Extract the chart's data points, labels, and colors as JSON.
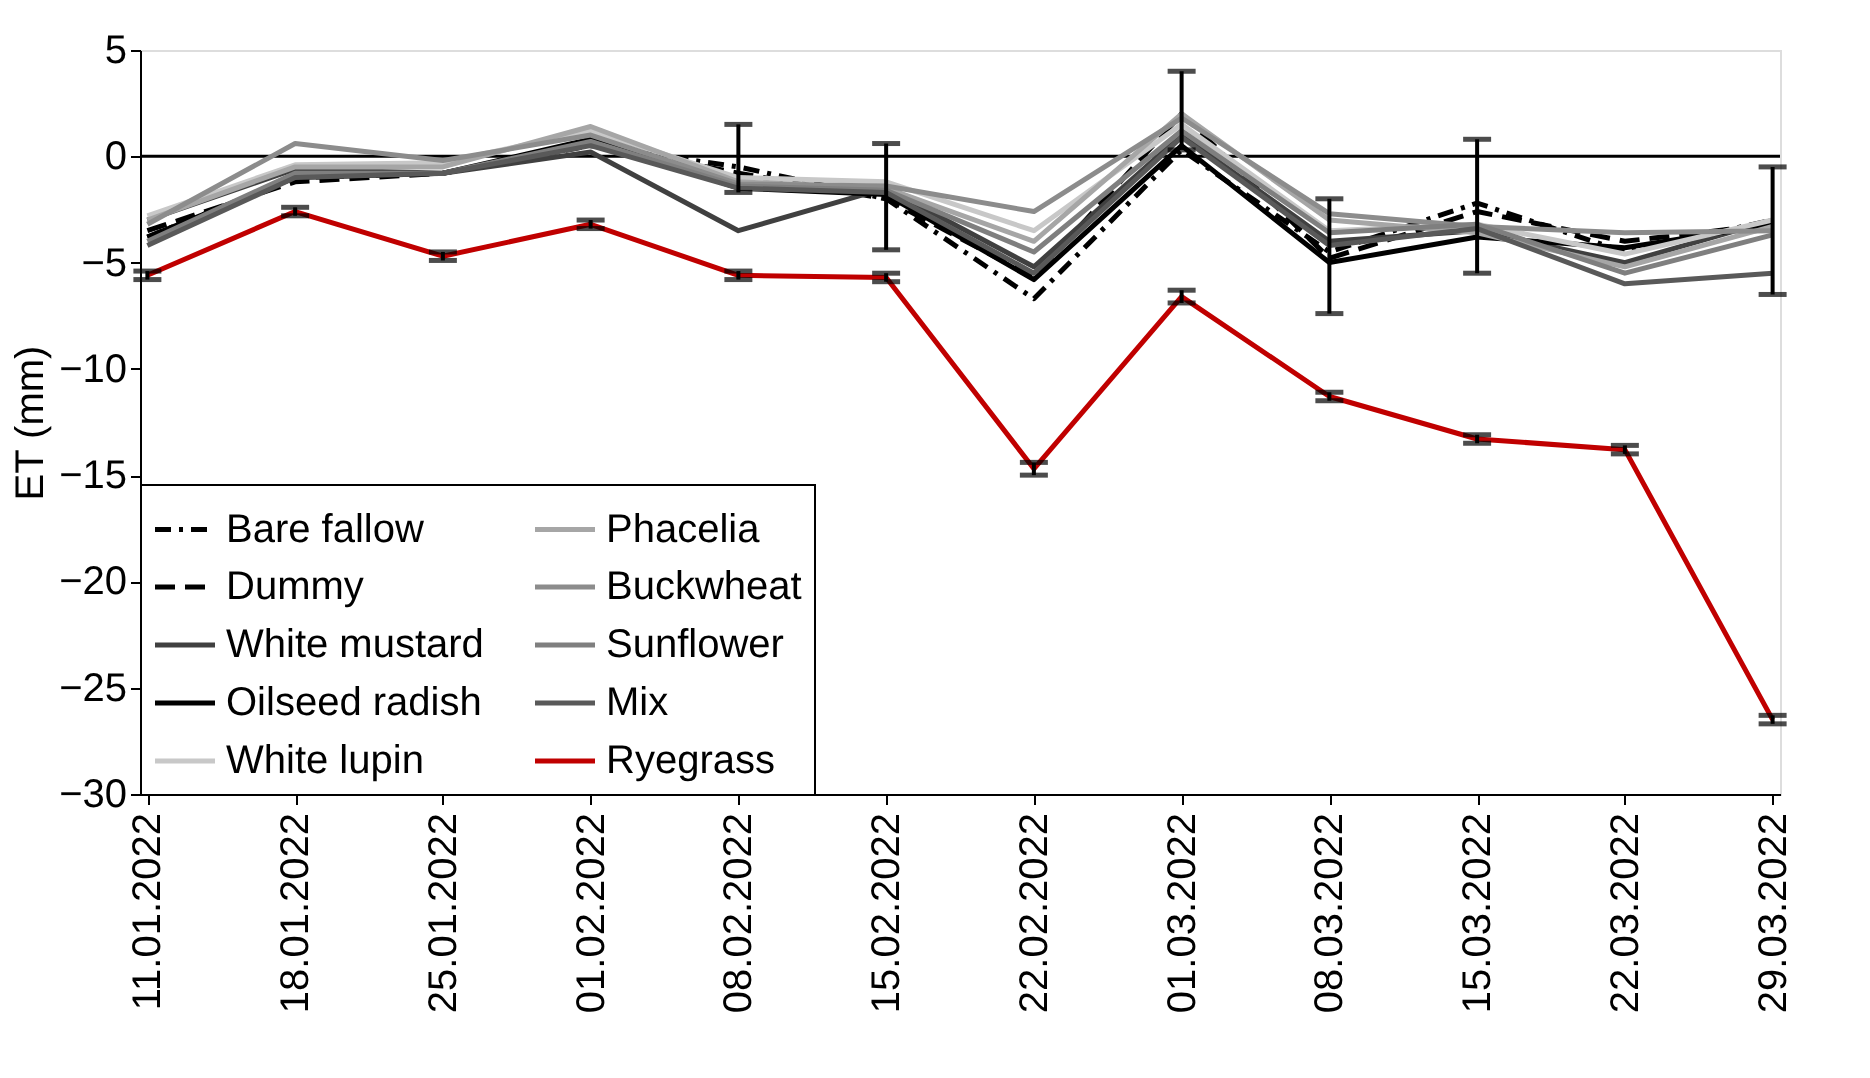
{
  "chart_data": {
    "type": "line",
    "ylabel": "ET (mm)",
    "categories": [
      "11.01.2022",
      "18.01.2022",
      "25.01.2022",
      "01.02.2022",
      "08.02.2022",
      "15.02.2022",
      "22.02.2022",
      "01.03.2022",
      "08.03.2022",
      "15.03.2022",
      "22.03.2022",
      "29.03.2022"
    ],
    "series": [
      {
        "name": "Bare fallow",
        "color": "#000000",
        "line_style": "dashdot",
        "values": [
          -3.8,
          -1.0,
          -0.8,
          0.5,
          -0.5,
          -2.0,
          -6.7,
          0.3,
          -4.5,
          -2.2,
          -4.5,
          -3.0
        ]
      },
      {
        "name": "Dummy",
        "color": "#000000",
        "line_style": "dashed",
        "values": [
          -3.5,
          -1.2,
          -0.8,
          0.6,
          -0.8,
          -2.0,
          -5.7,
          2.0,
          -4.8,
          -2.6,
          -4.0,
          -3.2
        ],
        "errors": [
          null,
          null,
          null,
          null,
          [
            -1.7,
            1.5
          ],
          [
            -4.4,
            0.6
          ],
          null,
          [
            0.3,
            4.0
          ],
          [
            -7.4,
            -2.0
          ],
          [
            -5.5,
            0.8
          ],
          null,
          [
            -6.5,
            -0.5
          ]
        ]
      },
      {
        "name": "White mustard",
        "color": "#404040",
        "line_style": "solid",
        "values": [
          -3.0,
          -0.6,
          -0.8,
          0.2,
          -3.5,
          -1.5,
          -5.2,
          1.0,
          -4.0,
          -3.5,
          -5.0,
          -3.0
        ]
      },
      {
        "name": "Oilseed radish",
        "color": "#000000",
        "line_style": "solid",
        "values": [
          -3.8,
          -1.0,
          -0.8,
          0.8,
          -1.5,
          -1.8,
          -5.8,
          0.5,
          -5.0,
          -3.8,
          -4.3,
          -3.2
        ]
      },
      {
        "name": "White lupin",
        "color": "#c8c8c8",
        "line_style": "solid",
        "values": [
          -2.8,
          -0.4,
          -0.3,
          1.2,
          -1.0,
          -1.2,
          -3.5,
          1.5,
          -3.5,
          -3.2,
          -4.6,
          -3.0
        ]
      },
      {
        "name": "Phacelia",
        "color": "#a6a6a6",
        "line_style": "solid",
        "values": [
          -3.0,
          -0.5,
          -0.5,
          1.4,
          -1.2,
          -1.5,
          -4.0,
          2.0,
          -3.0,
          -3.6,
          -5.2,
          -3.3
        ]
      },
      {
        "name": "Buckwheat",
        "color": "#8c8c8c",
        "line_style": "solid",
        "values": [
          -3.2,
          0.6,
          -0.2,
          1.0,
          -1.3,
          -1.4,
          -2.6,
          1.8,
          -2.7,
          -3.3,
          -3.6,
          -3.5
        ]
      },
      {
        "name": "Sunflower",
        "color": "#7f7f7f",
        "line_style": "solid",
        "values": [
          -4.0,
          -0.8,
          -0.8,
          0.7,
          -1.4,
          -1.6,
          -4.5,
          1.2,
          -3.6,
          -3.2,
          -5.5,
          -3.7
        ]
      },
      {
        "name": "Mix",
        "color": "#595959",
        "line_style": "solid",
        "values": [
          -4.2,
          -1.0,
          -0.8,
          0.5,
          -1.5,
          -1.7,
          -5.5,
          0.9,
          -4.2,
          -3.4,
          -6.0,
          -5.5
        ]
      },
      {
        "name": "Ryegrass",
        "color": "#c00000",
        "line_style": "solid",
        "values": [
          -5.6,
          -2.6,
          -4.7,
          -3.2,
          -5.6,
          -5.7,
          -14.7,
          -6.6,
          -11.3,
          -13.3,
          -13.8,
          -26.5
        ],
        "errors": [
          0.2,
          0.2,
          0.2,
          0.2,
          0.2,
          0.2,
          0.3,
          0.3,
          0.2,
          0.2,
          0.2,
          0.2
        ]
      }
    ],
    "ylim": [
      -30,
      5
    ],
    "yticks": [
      -30,
      -25,
      -20,
      -15,
      -10,
      -5,
      0,
      5
    ],
    "grid": false,
    "legend": "bottom left",
    "ref_lines": [
      {
        "axis": "y",
        "value": 0,
        "color": "#000000"
      }
    ]
  }
}
